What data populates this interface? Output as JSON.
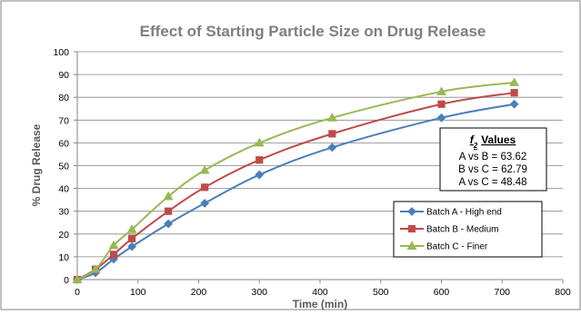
{
  "chart_data": {
    "type": "line",
    "title": "Effect of Starting Particle Size on Drug Release",
    "xlabel": "Time (min)",
    "ylabel": "% Drug Release",
    "xlim": [
      0,
      800
    ],
    "ylim": [
      0,
      100
    ],
    "xticks": [
      0,
      100,
      200,
      300,
      400,
      500,
      600,
      700,
      800
    ],
    "yticks": [
      0,
      10,
      20,
      30,
      40,
      50,
      60,
      70,
      80,
      90,
      100
    ],
    "grid": "horizontal",
    "legend_position": "bottom-right",
    "series": [
      {
        "name": "Batch A - High end",
        "color": "#4a7ebb",
        "marker": "diamond",
        "x": [
          0,
          30,
          60,
          90,
          150,
          210,
          300,
          420,
          600,
          720
        ],
        "y": [
          0,
          3,
          9,
          14.5,
          24.5,
          33.5,
          46,
          58,
          71,
          77
        ]
      },
      {
        "name": "Batch B - Medium",
        "color": "#be4b48",
        "marker": "square",
        "x": [
          0,
          30,
          60,
          90,
          150,
          210,
          300,
          420,
          600,
          720
        ],
        "y": [
          0,
          4.5,
          11,
          18,
          30,
          40.5,
          52.5,
          64,
          77,
          82
        ]
      },
      {
        "name": "Batch C - Finer",
        "color": "#98b954",
        "marker": "triangle",
        "x": [
          0,
          30,
          60,
          90,
          150,
          210,
          300,
          420,
          600,
          720
        ],
        "y": [
          0,
          4.5,
          15,
          22,
          36.5,
          48,
          60,
          71,
          82.5,
          86.5
        ]
      }
    ],
    "annotation": {
      "title_symbol": "f",
      "title_subscript": "2",
      "title_text": "Values",
      "lines": [
        "A vs B = 63.62",
        "B vs C = 62.79",
        "A vs C = 48.48"
      ]
    }
  }
}
